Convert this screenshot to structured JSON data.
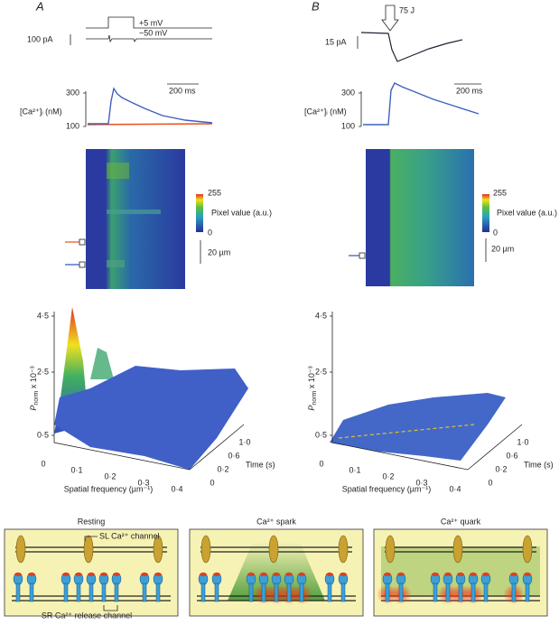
{
  "panels": [
    {
      "label": "A",
      "voltage_labels": [
        "+5 mV",
        "−50 mV"
      ],
      "current_scale": "100 pA",
      "time_scale": "200 ms",
      "ca_ticks": [
        "300",
        "100"
      ],
      "ca_label": "[Ca²⁺]ᵢ (nM)",
      "colorbar": {
        "max": "255",
        "label": "Pixel value (a.u.)",
        "min": "0"
      },
      "length_scale": "20 µm",
      "surface": {
        "z_ticks": [
          "4·5",
          "2·5",
          "0·5"
        ],
        "z_symbol": "P",
        "z_subscript": "norm",
        "z_suffix": " x 10⁻³",
        "x_ticks": [
          "0",
          "0·1",
          "0·2",
          "0·3",
          "0·4"
        ],
        "x_label": "Spatial frequency (µm⁻¹)",
        "t_ticks": [
          "0",
          "0·2",
          "0·6",
          "1·0"
        ],
        "t_label": "Time (s)"
      }
    },
    {
      "label": "B",
      "stimulus": "75 J",
      "current_scale": "15 pA",
      "time_scale": "200 ms",
      "ca_ticks": [
        "300",
        "100"
      ],
      "ca_label": "[Ca²⁺]ᵢ (nM)",
      "colorbar": {
        "max": "255",
        "label": "Pixel value (a.u.)",
        "min": "0"
      },
      "length_scale": "20 µm",
      "surface": {
        "z_ticks": [
          "4·5",
          "2·5",
          "0·5"
        ],
        "z_symbol": "P",
        "z_subscript": "norm",
        "z_suffix": " x 10⁻³",
        "x_ticks": [
          "0",
          "0·1",
          "0·2",
          "0·3",
          "0·4"
        ],
        "x_label": "Spatial frequency (µm⁻¹)",
        "t_ticks": [
          "0",
          "0·2",
          "0·6",
          "1·0"
        ],
        "t_label": "Time (s)"
      }
    }
  ],
  "schematics": [
    {
      "title": "Resting",
      "labels": [
        "SL Ca²⁺ channel",
        "SR Ca²⁺ release channel"
      ]
    },
    {
      "title": "Ca²⁺ spark"
    },
    {
      "title": "Ca²⁺ quark"
    }
  ]
}
